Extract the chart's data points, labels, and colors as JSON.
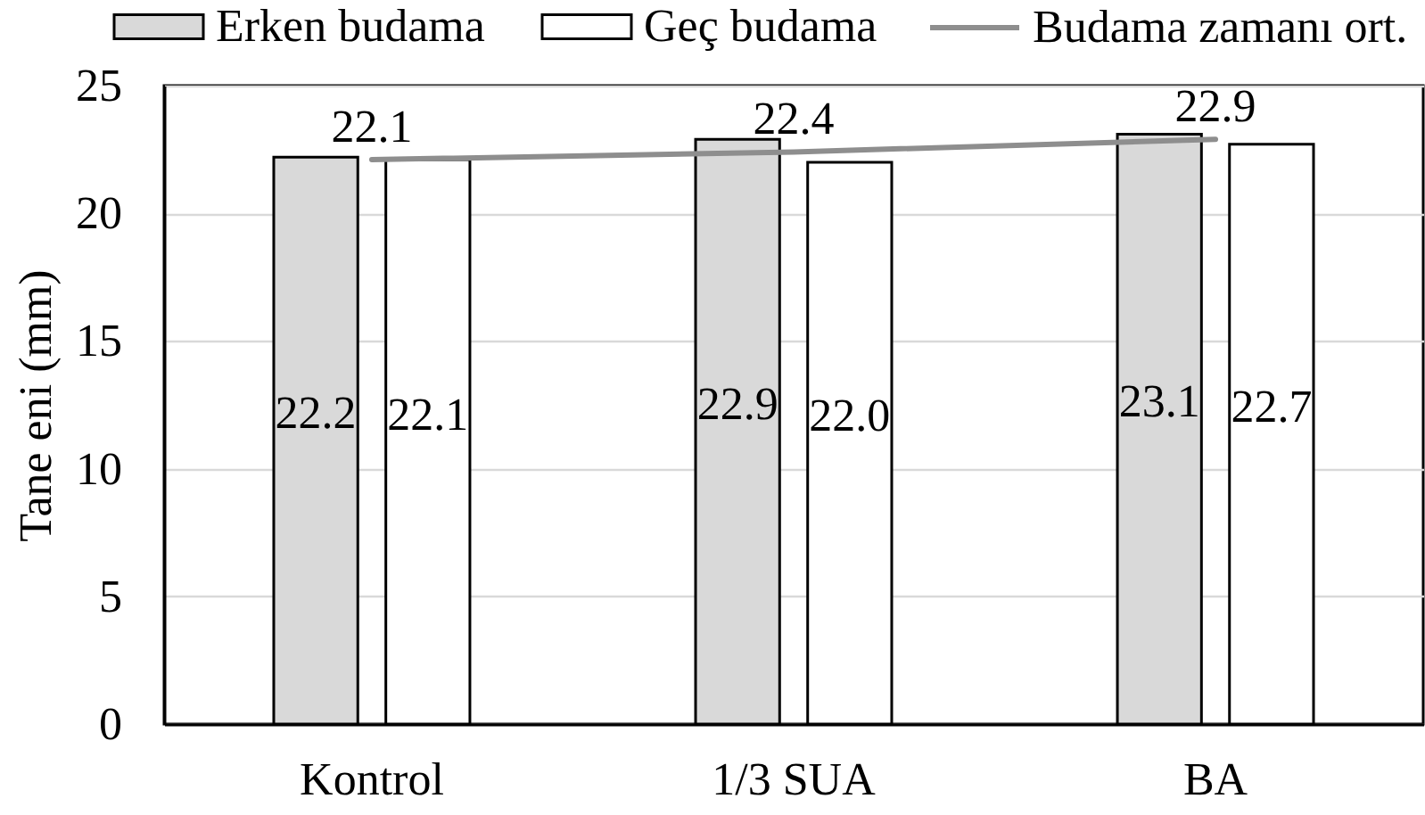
{
  "chart_data": {
    "type": "bar",
    "categories": [
      "Kontrol",
      "1/3 SUA",
      "BA"
    ],
    "ylabel": "Tane eni (mm)",
    "ylim": [
      0,
      25
    ],
    "yticks": [
      0,
      5,
      10,
      15,
      20,
      25
    ],
    "grid": "y",
    "legend": "top",
    "series": [
      {
        "name": "Erken budama",
        "color": "#d9d9d9",
        "values": [
          22.2,
          22.9,
          23.1
        ],
        "value_labels": [
          "22.2",
          "22.9",
          "23.1"
        ]
      },
      {
        "name": "Geç budama",
        "color": "#ffffff",
        "values": [
          22.1,
          22.0,
          22.7
        ],
        "value_labels": [
          "22.1",
          "22.0",
          "22.7"
        ]
      },
      {
        "name": "Budama zamanı ort.",
        "type": "line",
        "color": "#8e8e8e",
        "values": [
          22.1,
          22.4,
          22.9
        ],
        "value_labels": [
          "22.1",
          "22.4",
          "22.9"
        ]
      }
    ]
  }
}
